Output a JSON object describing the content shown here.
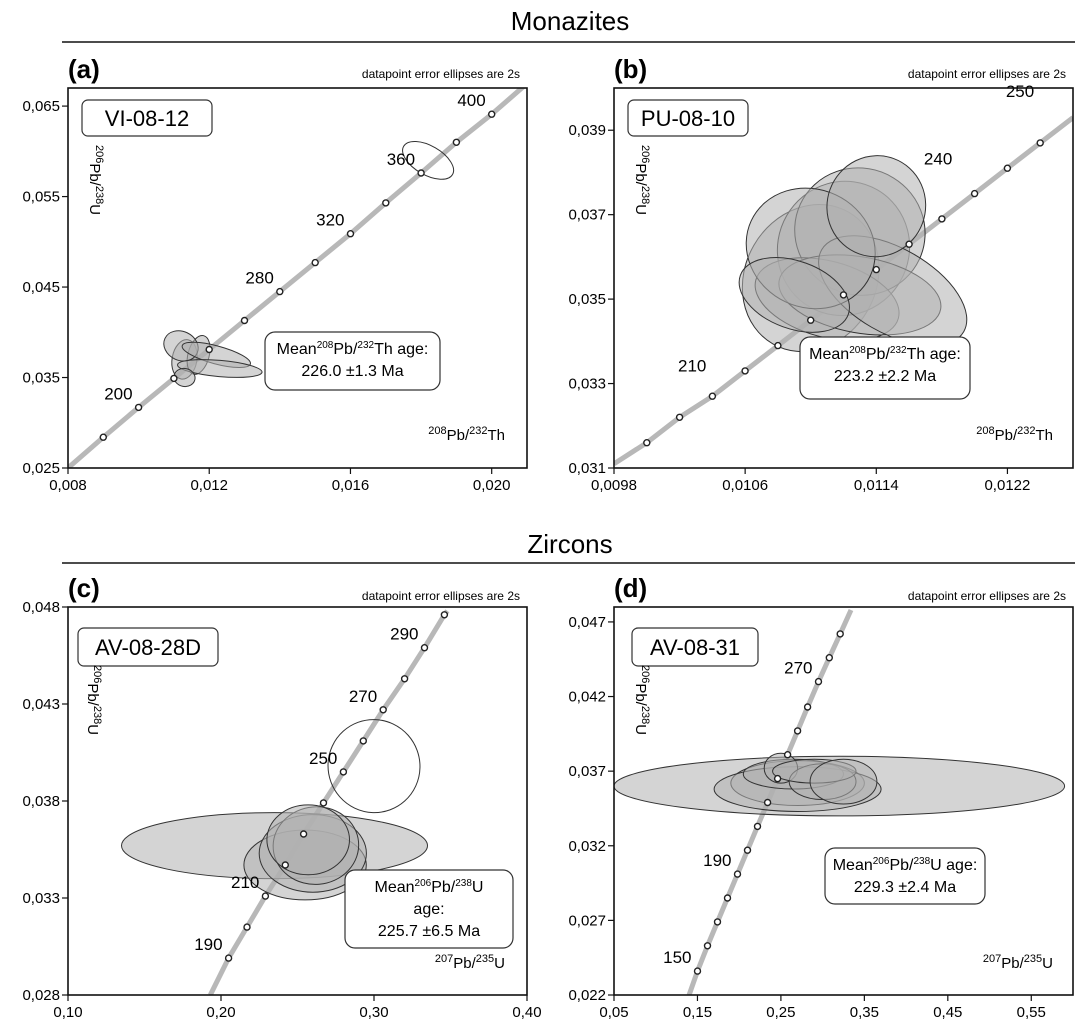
{
  "sections": [
    {
      "title": "Monazites"
    },
    {
      "title": "Zircons"
    }
  ],
  "colors": {
    "concordia": "#b8b8b8",
    "ellipse_fill": "#b0b0b0",
    "ellipse_stroke": "#333333",
    "axis": "#111111"
  },
  "chart_data": [
    {
      "type": "scatter",
      "panel": "(a)",
      "sample": "VI-08-12",
      "note": "datapoint error ellipses are 2s",
      "xlabel": "208Pb/232Th",
      "ylabel": "206Pb/238U",
      "xlim": [
        0.008,
        0.021
      ],
      "ylim": [
        0.025,
        0.067
      ],
      "x_ticks": [
        "0,008",
        "0,012",
        "0,016",
        "0,020"
      ],
      "x_tick_values": [
        0.008,
        0.012,
        0.016,
        0.02
      ],
      "y_ticks": [
        "0,025",
        "0,035",
        "0,045",
        "0,055",
        "0,065"
      ],
      "y_tick_values": [
        0.025,
        0.035,
        0.045,
        0.055,
        0.065
      ],
      "concordia": [
        [
          0.008,
          0.025
        ],
        [
          0.009,
          0.0284
        ],
        [
          0.01,
          0.0317
        ],
        [
          0.011,
          0.0349
        ],
        [
          0.012,
          0.0381
        ],
        [
          0.013,
          0.0413
        ],
        [
          0.014,
          0.0445
        ],
        [
          0.015,
          0.0477
        ],
        [
          0.016,
          0.0509
        ],
        [
          0.017,
          0.0543
        ],
        [
          0.018,
          0.0576
        ],
        [
          0.019,
          0.061
        ],
        [
          0.02,
          0.0641
        ],
        [
          0.021,
          0.0675
        ]
      ],
      "age_labels": [
        {
          "text": "200",
          "x": 0.01,
          "y": 0.0317
        },
        {
          "text": "280",
          "x": 0.014,
          "y": 0.0445
        },
        {
          "text": "320",
          "x": 0.016,
          "y": 0.0509
        },
        {
          "text": "360",
          "x": 0.018,
          "y": 0.0576
        },
        {
          "text": "400",
          "x": 0.02,
          "y": 0.0641
        }
      ],
      "ellipses": [
        {
          "x": 0.0113,
          "y": 0.037,
          "rx": 0.00035,
          "ry": 0.0022,
          "angle": 10,
          "filled": true
        },
        {
          "x": 0.0117,
          "y": 0.0375,
          "rx": 0.0003,
          "ry": 0.0022,
          "angle": 15,
          "filled": true
        },
        {
          "x": 0.0112,
          "y": 0.0385,
          "rx": 0.0005,
          "ry": 0.0016,
          "angle": 25,
          "filled": true
        },
        {
          "x": 0.0122,
          "y": 0.0375,
          "rx": 0.001,
          "ry": 0.001,
          "angle": 15,
          "filled": true
        },
        {
          "x": 0.0123,
          "y": 0.036,
          "rx": 0.0012,
          "ry": 0.0009,
          "angle": 5,
          "filled": true
        },
        {
          "x": 0.0113,
          "y": 0.035,
          "rx": 0.0003,
          "ry": 0.001,
          "angle": 10,
          "filled": true
        },
        {
          "x": 0.0182,
          "y": 0.059,
          "rx": 0.0008,
          "ry": 0.0016,
          "angle": 30,
          "filled": false
        }
      ],
      "mean": {
        "line1": "Mean",
        "iso1": "208",
        "el1": "Pb/",
        "iso2": "232",
        "el2": "Th age:",
        "value": "226.0 ±1.3 Ma"
      }
    },
    {
      "type": "scatter",
      "panel": "(b)",
      "sample": "PU-08-10",
      "note": "datapoint error ellipses are 2s",
      "xlabel": "208Pb/232Th",
      "ylabel": "206Pb/238U",
      "xlim": [
        0.0098,
        0.0126
      ],
      "ylim": [
        0.031,
        0.04
      ],
      "x_ticks": [
        "0,0098",
        "0,0106",
        "0,0114",
        "0,0122"
      ],
      "x_tick_values": [
        0.0098,
        0.0106,
        0.0114,
        0.0122
      ],
      "y_ticks": [
        "0,031",
        "0,033",
        "0,035",
        "0,037",
        "0,039"
      ],
      "y_tick_values": [
        0.031,
        0.033,
        0.035,
        0.037,
        0.039
      ],
      "concordia": [
        [
          0.0098,
          0.0311
        ],
        [
          0.01,
          0.0316
        ],
        [
          0.0102,
          0.0322
        ],
        [
          0.0104,
          0.0327
        ],
        [
          0.0106,
          0.0333
        ],
        [
          0.0108,
          0.0339
        ],
        [
          0.011,
          0.0345
        ],
        [
          0.0112,
          0.0351
        ],
        [
          0.0114,
          0.0357
        ],
        [
          0.0116,
          0.0363
        ],
        [
          0.0118,
          0.0369
        ],
        [
          0.012,
          0.0375
        ],
        [
          0.0122,
          0.0381
        ],
        [
          0.0124,
          0.0387
        ],
        [
          0.0126,
          0.0393
        ]
      ],
      "age_labels": [
        {
          "text": "210",
          "x": 0.0104,
          "y": 0.0331
        },
        {
          "text": "240",
          "x": 0.0119,
          "y": 0.038
        },
        {
          "text": "250",
          "x": 0.0124,
          "y": 0.0396
        }
      ],
      "ellipses": [
        {
          "x": 0.011,
          "y": 0.0355,
          "rx": 0.0004,
          "ry": 0.0018,
          "angle": 30,
          "filled": true
        },
        {
          "x": 0.0112,
          "y": 0.0362,
          "rx": 0.0004,
          "ry": 0.0016,
          "angle": 30,
          "filled": true
        },
        {
          "x": 0.0113,
          "y": 0.0366,
          "rx": 0.0004,
          "ry": 0.0015,
          "angle": 25,
          "filled": true
        },
        {
          "x": 0.0111,
          "y": 0.035,
          "rx": 0.00045,
          "ry": 0.0009,
          "angle": 15,
          "filled": true
        },
        {
          "x": 0.0113,
          "y": 0.0351,
          "rx": 0.0005,
          "ry": 0.0009,
          "angle": 10,
          "filled": true
        },
        {
          "x": 0.0115,
          "y": 0.0352,
          "rx": 0.0005,
          "ry": 0.001,
          "angle": 30,
          "filled": true
        },
        {
          "x": 0.011,
          "y": 0.0362,
          "rx": 0.0004,
          "ry": 0.0014,
          "angle": 25,
          "filled": true
        },
        {
          "x": 0.0114,
          "y": 0.0372,
          "rx": 0.0003,
          "ry": 0.0012,
          "angle": 20,
          "filled": true
        },
        {
          "x": 0.0109,
          "y": 0.0351,
          "rx": 0.00035,
          "ry": 0.0008,
          "angle": 20,
          "filled": true
        }
      ],
      "mean": {
        "line1": "Mean",
        "iso1": "208",
        "el1": "Pb/",
        "iso2": "232",
        "el2": "Th age:",
        "value": "223.2 ±2.2 Ma"
      }
    },
    {
      "type": "scatter",
      "panel": "(c)",
      "sample": "AV-08-28D",
      "note": "datapoint error ellipses are 2s",
      "xlabel": "207Pb/235U",
      "ylabel": "206Pb/238U",
      "xlim": [
        0.1,
        0.4
      ],
      "ylim": [
        0.028,
        0.048
      ],
      "x_ticks": [
        "0,10",
        "0,20",
        "0,30",
        "0,40"
      ],
      "x_tick_values": [
        0.1,
        0.2,
        0.3,
        0.4
      ],
      "y_ticks": [
        "0,028",
        "0,033",
        "0,038",
        "0,043",
        "0,048"
      ],
      "y_tick_values": [
        0.028,
        0.033,
        0.038,
        0.043,
        0.048
      ],
      "concordia": [
        [
          0.193,
          0.028
        ],
        [
          0.205,
          0.0299
        ],
        [
          0.217,
          0.0315
        ],
        [
          0.229,
          0.0331
        ],
        [
          0.242,
          0.0347
        ],
        [
          0.254,
          0.0363
        ],
        [
          0.267,
          0.0379
        ],
        [
          0.28,
          0.0395
        ],
        [
          0.293,
          0.0411
        ],
        [
          0.306,
          0.0427
        ],
        [
          0.32,
          0.0443
        ],
        [
          0.333,
          0.0459
        ],
        [
          0.346,
          0.0476
        ],
        [
          0.348,
          0.0478
        ]
      ],
      "age_labels": [
        {
          "text": "190",
          "x": 0.205,
          "y": 0.0299
        },
        {
          "text": "210",
          "x": 0.229,
          "y": 0.0331
        },
        {
          "text": "250",
          "x": 0.28,
          "y": 0.0395
        },
        {
          "text": "270",
          "x": 0.306,
          "y": 0.0427
        },
        {
          "text": "290",
          "x": 0.333,
          "y": 0.0459
        }
      ],
      "ellipses": [
        {
          "x": 0.235,
          "y": 0.0357,
          "rx": 0.1,
          "ry": 0.0017,
          "angle": 0,
          "filled": true
        },
        {
          "x": 0.255,
          "y": 0.0347,
          "rx": 0.04,
          "ry": 0.0018,
          "angle": 0,
          "filled": true
        },
        {
          "x": 0.26,
          "y": 0.0353,
          "rx": 0.035,
          "ry": 0.002,
          "angle": 0,
          "filled": true
        },
        {
          "x": 0.262,
          "y": 0.0357,
          "rx": 0.028,
          "ry": 0.002,
          "angle": -5,
          "filled": true
        },
        {
          "x": 0.257,
          "y": 0.036,
          "rx": 0.027,
          "ry": 0.0018,
          "angle": 0,
          "filled": true
        },
        {
          "x": 0.3,
          "y": 0.0398,
          "rx": 0.03,
          "ry": 0.0024,
          "angle": -20,
          "filled": false
        }
      ],
      "mean": {
        "line1": "Mean",
        "iso1": "206",
        "el1": "Pb/",
        "iso2": "238",
        "el2": "U",
        "line2": "age:",
        "value": "225.7 ±6.5 Ma"
      }
    },
    {
      "type": "scatter",
      "panel": "(d)",
      "sample": "AV-08-31",
      "note": "datapoint error ellipses are 2s",
      "xlabel": "207Pb/235U",
      "ylabel": "206Pb/238U",
      "xlim": [
        0.05,
        0.6
      ],
      "ylim": [
        0.022,
        0.048
      ],
      "x_ticks": [
        "0,05",
        "0,15",
        "0,25",
        "0,35",
        "0,45",
        "0,55"
      ],
      "x_tick_values": [
        0.05,
        0.15,
        0.25,
        0.35,
        0.45,
        0.55
      ],
      "y_ticks": [
        "0,022",
        "0,027",
        "0,032",
        "0,037",
        "0,042",
        "0,047"
      ],
      "y_tick_values": [
        0.022,
        0.027,
        0.032,
        0.037,
        0.042,
        0.047
      ],
      "concordia": [
        [
          0.14,
          0.022
        ],
        [
          0.15,
          0.0236
        ],
        [
          0.162,
          0.0253
        ],
        [
          0.174,
          0.0269
        ],
        [
          0.186,
          0.0285
        ],
        [
          0.198,
          0.0301
        ],
        [
          0.21,
          0.0317
        ],
        [
          0.222,
          0.0333
        ],
        [
          0.234,
          0.0349
        ],
        [
          0.246,
          0.0365
        ],
        [
          0.258,
          0.0381
        ],
        [
          0.27,
          0.0397
        ],
        [
          0.282,
          0.0413
        ],
        [
          0.295,
          0.043
        ],
        [
          0.308,
          0.0446
        ],
        [
          0.321,
          0.0462
        ],
        [
          0.334,
          0.0478
        ]
      ],
      "age_labels": [
        {
          "text": "150",
          "x": 0.15,
          "y": 0.0236
        },
        {
          "text": "190",
          "x": 0.198,
          "y": 0.0301
        },
        {
          "text": "270",
          "x": 0.295,
          "y": 0.043
        }
      ],
      "ellipses": [
        {
          "x": 0.32,
          "y": 0.036,
          "rx": 0.27,
          "ry": 0.002,
          "angle": 0,
          "filled": true
        },
        {
          "x": 0.27,
          "y": 0.0362,
          "rx": 0.08,
          "ry": 0.0015,
          "angle": 0,
          "filled": true
        },
        {
          "x": 0.27,
          "y": 0.0358,
          "rx": 0.1,
          "ry": 0.0015,
          "angle": 0,
          "filled": true
        },
        {
          "x": 0.265,
          "y": 0.0368,
          "rx": 0.06,
          "ry": 0.001,
          "angle": 0,
          "filled": true
        },
        {
          "x": 0.25,
          "y": 0.0372,
          "rx": 0.02,
          "ry": 0.001,
          "angle": 0,
          "filled": true
        },
        {
          "x": 0.3,
          "y": 0.0363,
          "rx": 0.04,
          "ry": 0.0012,
          "angle": 0,
          "filled": true
        },
        {
          "x": 0.29,
          "y": 0.037,
          "rx": 0.05,
          "ry": 0.0008,
          "angle": 0,
          "filled": true
        },
        {
          "x": 0.325,
          "y": 0.0363,
          "rx": 0.04,
          "ry": 0.0015,
          "angle": 0,
          "filled": true
        }
      ],
      "mean": {
        "line1": "Mean",
        "iso1": "206",
        "el1": "Pb/",
        "iso2": "238",
        "el2": "U age:",
        "value": "229.3 ±2.4 Ma"
      }
    }
  ]
}
